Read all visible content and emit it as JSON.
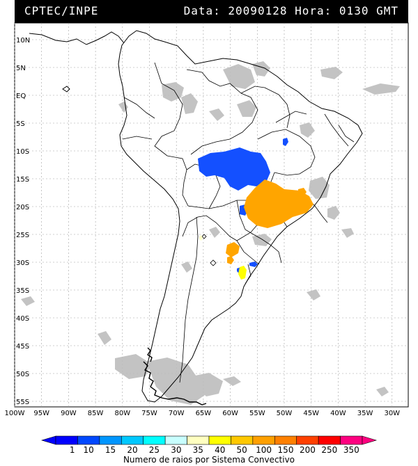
{
  "header": {
    "source": "CPTEC/INPE",
    "date_label": "Data:",
    "date_value": "20090128",
    "hour_label": "Hora:",
    "hour_value": "0130",
    "tz": "GMT"
  },
  "map": {
    "lat_labels": [
      "10N",
      "5N",
      "EQ",
      "5S",
      "10S",
      "15S",
      "20S",
      "25S",
      "30S",
      "35S",
      "40S",
      "45S",
      "50S",
      "55S"
    ],
    "lon_labels": [
      "100W",
      "95W",
      "90W",
      "85W",
      "80W",
      "75W",
      "70W",
      "65W",
      "60W",
      "55W",
      "50W",
      "45W",
      "40W",
      "35W",
      "30W"
    ],
    "lon_range": [
      -100,
      -27
    ],
    "lat_range": [
      -56,
      13
    ]
  },
  "legend": {
    "ticks": [
      "1",
      "10",
      "15",
      "20",
      "25",
      "30",
      "35",
      "40",
      "50",
      "100",
      "150",
      "200",
      "250",
      "350"
    ],
    "colors": [
      "#0000ff",
      "#0048ff",
      "#0096ff",
      "#00c8ff",
      "#00ffff",
      "#c8ffff",
      "#ffffc0",
      "#ffff00",
      "#ffc800",
      "#ffa000",
      "#ff8000",
      "#ff4000",
      "#ff0000",
      "#ff0080"
    ],
    "title": "Numero de raios por Sistema Convectivo"
  },
  "colors": {
    "cloud": "#bdbdbd",
    "blue": "#1450ff",
    "orange": "#ffa500",
    "yellow": "#ffff00",
    "pale": "#ffffc8"
  }
}
